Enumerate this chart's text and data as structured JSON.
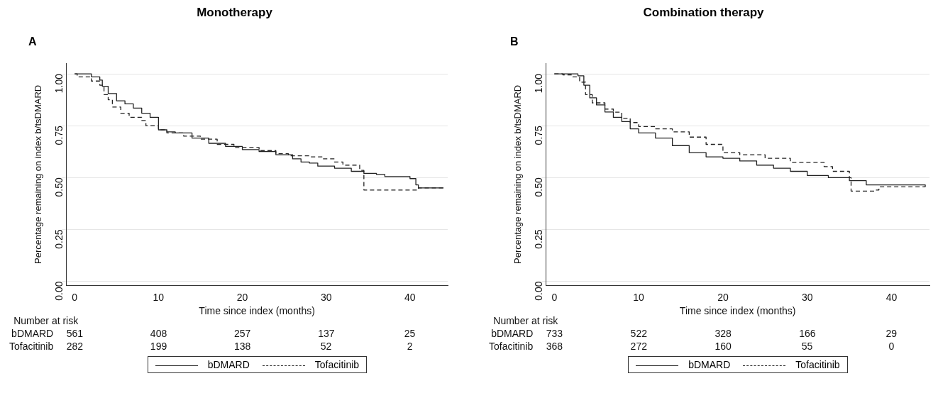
{
  "chart_data": [
    {
      "type": "step",
      "title": "Monotherapy",
      "subtitle": "A",
      "xlabel": "Time since index (months)",
      "ylabel": "Percentage remaining on index b/tsDMARD",
      "xlim": [
        -1,
        44.5
      ],
      "xticks": [
        0,
        10,
        20,
        30,
        40
      ],
      "ylim": [
        -0.02,
        1.05
      ],
      "yticks": [
        {
          "value": 0,
          "label": "0.00"
        },
        {
          "value": 0.25,
          "label": "0.25"
        },
        {
          "value": 0.5,
          "label": "0.50"
        },
        {
          "value": 0.75,
          "label": "0.75"
        },
        {
          "value": 1,
          "label": "1.00"
        }
      ],
      "grid": "y",
      "legend": "bottom",
      "marker": "none",
      "series": [
        {
          "name": "bDMARD",
          "color": "#222222",
          "line_style": "solid",
          "x": [
            0,
            1,
            2,
            3,
            3.3,
            4,
            5,
            6,
            7,
            8,
            9,
            10,
            11,
            12,
            14,
            16,
            18,
            20,
            22,
            24,
            26,
            27,
            28,
            29,
            31,
            33,
            34.5,
            36,
            37,
            40,
            40.7,
            41,
            44
          ],
          "values": [
            1,
            1,
            0.985,
            0.97,
            0.94,
            0.905,
            0.87,
            0.855,
            0.835,
            0.81,
            0.79,
            0.73,
            0.72,
            0.715,
            0.69,
            0.665,
            0.65,
            0.635,
            0.625,
            0.61,
            0.59,
            0.575,
            0.57,
            0.555,
            0.545,
            0.53,
            0.52,
            0.515,
            0.505,
            0.495,
            0.465,
            0.45,
            0.45
          ]
        },
        {
          "name": "Tofacitinib",
          "color": "#222222",
          "line_style": "dashed",
          "x": [
            0,
            0.3,
            2,
            3,
            3.5,
            4,
            4.5,
            5.5,
            6.5,
            8,
            8.5,
            10,
            11,
            13,
            15,
            17,
            19,
            22,
            24,
            25.5,
            28,
            29.5,
            31,
            32,
            34,
            34.5,
            41,
            44
          ],
          "values": [
            1,
            0.985,
            0.965,
            0.945,
            0.9,
            0.875,
            0.84,
            0.81,
            0.79,
            0.775,
            0.75,
            0.73,
            0.715,
            0.7,
            0.685,
            0.66,
            0.645,
            0.63,
            0.615,
            0.605,
            0.6,
            0.59,
            0.575,
            0.56,
            0.535,
            0.44,
            0.45,
            0.45
          ]
        }
      ],
      "annotations": [
        "Number at risk",
        "bDMARD 561 408 257 137 25",
        "Tofacitinib 282 199 138 52 2"
      ]
    },
    {
      "type": "step",
      "title": "Combination therapy",
      "subtitle": "B",
      "xlabel": "Time since index (months)",
      "ylabel": "Percentage remaining on index b/tsDMARD",
      "xlim": [
        -1,
        44.5
      ],
      "xticks": [
        0,
        10,
        20,
        30,
        40
      ],
      "ylim": [
        -0.02,
        1.05
      ],
      "yticks": [
        {
          "value": 0,
          "label": "0.00"
        },
        {
          "value": 0.25,
          "label": "0.25"
        },
        {
          "value": 0.5,
          "label": "0.50"
        },
        {
          "value": 0.75,
          "label": "0.75"
        },
        {
          "value": 1,
          "label": "1.00"
        }
      ],
      "grid": "y",
      "legend": "bottom",
      "marker": "none",
      "series": [
        {
          "name": "bDMARD",
          "color": "#222222",
          "line_style": "solid",
          "x": [
            0,
            2,
            2.8,
            3.5,
            4.2,
            5,
            6,
            7,
            8,
            9,
            10,
            12,
            14,
            16,
            18,
            20,
            22,
            24,
            26,
            28,
            30,
            32.5,
            35,
            37,
            44
          ],
          "values": [
            1,
            1,
            0.99,
            0.945,
            0.884,
            0.85,
            0.816,
            0.79,
            0.77,
            0.735,
            0.715,
            0.69,
            0.654,
            0.62,
            0.6,
            0.593,
            0.58,
            0.56,
            0.545,
            0.53,
            0.51,
            0.5,
            0.485,
            0.465,
            0.455
          ]
        },
        {
          "name": "Tofacitinib",
          "color": "#222222",
          "line_style": "dashed",
          "x": [
            0,
            1,
            2,
            3,
            3.7,
            4.5,
            6,
            7,
            8,
            9,
            10,
            12,
            14,
            16,
            18,
            20,
            22,
            25,
            28,
            32,
            33,
            35,
            35.2,
            38,
            38.5,
            44
          ],
          "values": [
            1,
            0.995,
            0.985,
            0.96,
            0.9,
            0.86,
            0.83,
            0.815,
            0.785,
            0.765,
            0.746,
            0.735,
            0.72,
            0.695,
            0.66,
            0.62,
            0.61,
            0.593,
            0.573,
            0.553,
            0.53,
            0.5,
            0.435,
            0.44,
            0.455,
            0.455
          ]
        }
      ],
      "annotations": [
        "Number at risk",
        "bDMARD 733 522 328 166 29",
        "Tofacitinib 368 272 160 55 0"
      ]
    }
  ]
}
